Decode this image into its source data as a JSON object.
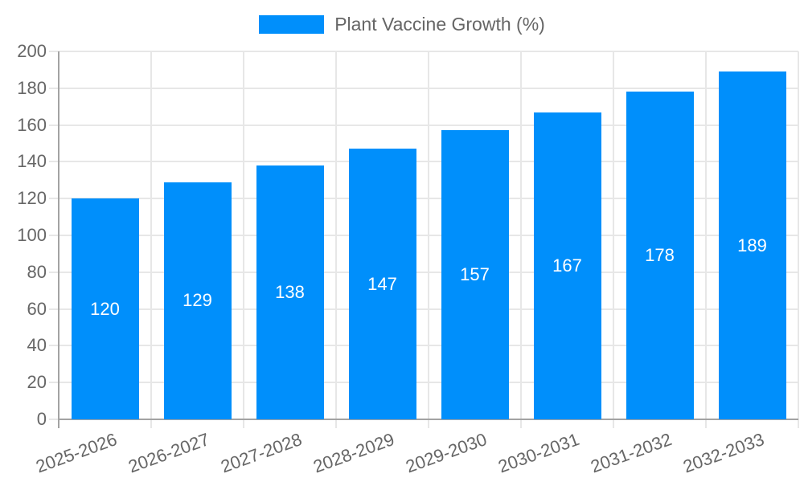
{
  "legend": {
    "label": "Plant Vaccine Growth (%)"
  },
  "chart_data": {
    "type": "bar",
    "title": "Plant Vaccine Growth (%)",
    "categories": [
      "2025-2026",
      "2026-2027",
      "2027-2028",
      "2028-2029",
      "2029-2030",
      "2030-2031",
      "2031-2032",
      "2032-2033"
    ],
    "values": [
      120,
      129,
      138,
      147,
      157,
      167,
      178,
      189
    ],
    "xlabel": "",
    "ylabel": "",
    "ylim": [
      0,
      200
    ],
    "ytick_step": 20,
    "grid": true,
    "legend_position": "top-center",
    "value_labels": "inside-center",
    "colors": {
      "bar": "#008FFB",
      "value_label": "#ffffff",
      "tick_text": "#666666",
      "legend_text": "#666666",
      "gridline": "#e7e7e7",
      "axis_line": "#a3a3a3",
      "background": "#ffffff"
    }
  }
}
